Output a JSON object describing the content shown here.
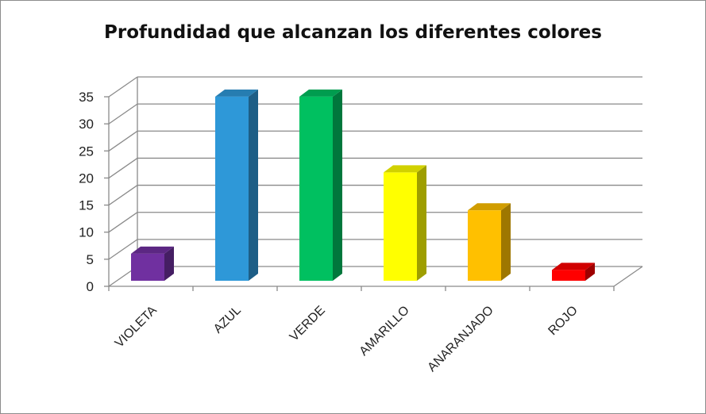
{
  "chart_data": {
    "type": "bar",
    "title": "Profundidad que alcanzan los diferentes colores",
    "categories": [
      "VIOLETA",
      "AZUL",
      "VERDE",
      "AMARILLO",
      "ANARANJADO",
      "ROJO"
    ],
    "values": [
      5,
      34,
      34,
      20,
      13,
      2
    ],
    "colors": [
      "#7030a0",
      "#2e98d8",
      "#00c060",
      "#ffff00",
      "#ffc000",
      "#ff0000"
    ],
    "ylim": [
      0,
      35
    ],
    "yticks": [
      0,
      5,
      10,
      15,
      20,
      25,
      30,
      35
    ],
    "grid": true,
    "style": "3d-column",
    "legend": "none"
  }
}
